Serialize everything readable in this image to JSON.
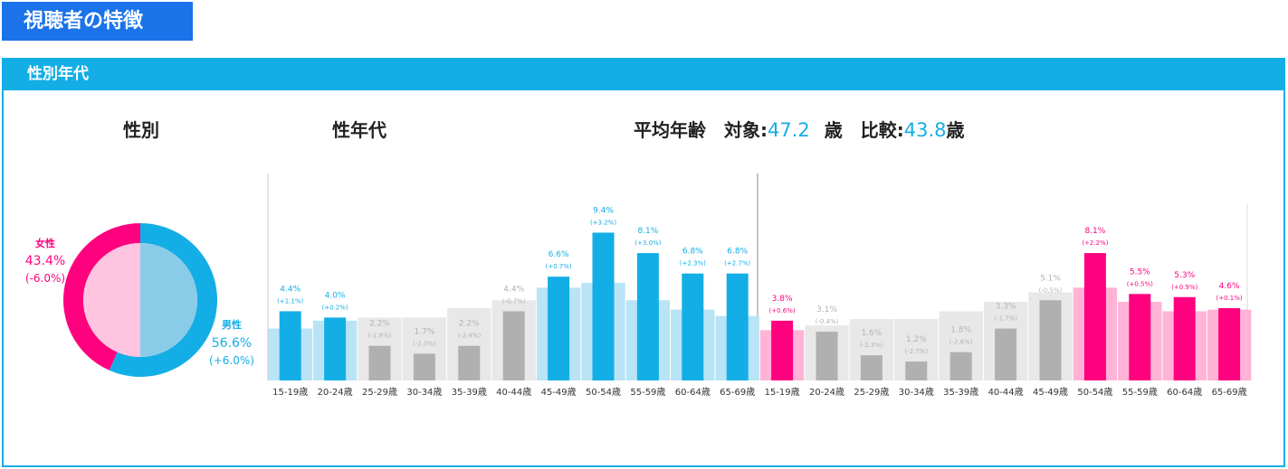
{
  "page_title": "視聴者の特徴",
  "section_title": "性別年代",
  "headings": {
    "gender": "性別",
    "age": "性年代",
    "avg_prefix": "平均年齢　対象:",
    "avg_target": "47.2",
    "avg_unit_mid": "歳　比較:",
    "avg_compare": "43.8",
    "avg_unit_end": "歳"
  },
  "colors": {
    "male_main": "#14aee6",
    "male_light": "#b8e4f6",
    "female_main": "#ff007f",
    "female_light": "#ffb3d6",
    "gray_main": "#b0b0b0",
    "gray_light": "#e8e8e8",
    "gray_text": "#b3b3b3",
    "pie_male_inner": "#8acce8",
    "pie_female_inner": "#ffc4df"
  },
  "chart_data": [
    {
      "type": "pie",
      "labels": [
        "男性",
        "女性"
      ],
      "values": [
        56.6,
        43.4
      ],
      "value_labels": [
        "56.6%",
        "43.4%"
      ],
      "diff_labels": [
        "(+6.0%)",
        "(-6.0%)"
      ]
    },
    {
      "type": "bar",
      "categories": [
        "15-19歳",
        "20-24歳",
        "25-29歳",
        "30-34歳",
        "35-39歳",
        "40-44歳",
        "45-49歳",
        "50-54歳",
        "55-59歳",
        "60-64歳",
        "65-69歳",
        "15-19歳",
        "20-24歳",
        "25-29歳",
        "30-34歳",
        "35-39歳",
        "40-44歳",
        "45-49歳",
        "50-54歳",
        "55-59歳",
        "60-64歳",
        "65-69歳"
      ],
      "groups": [
        "male",
        "male",
        "male",
        "male",
        "male",
        "male",
        "male",
        "male",
        "male",
        "male",
        "male",
        "female",
        "female",
        "female",
        "female",
        "female",
        "female",
        "female",
        "female",
        "female",
        "female",
        "female"
      ],
      "highlight": [
        true,
        true,
        false,
        false,
        false,
        false,
        true,
        true,
        true,
        true,
        true,
        true,
        false,
        false,
        false,
        false,
        false,
        false,
        true,
        true,
        true,
        true
      ],
      "values": [
        4.4,
        4.0,
        2.2,
        1.7,
        2.2,
        4.4,
        6.6,
        9.4,
        8.1,
        6.8,
        6.8,
        3.8,
        3.1,
        1.6,
        1.2,
        1.8,
        3.3,
        5.1,
        8.1,
        5.5,
        5.3,
        4.6
      ],
      "value_labels": [
        "4.4%",
        "4.0%",
        "2.2%",
        "1.7%",
        "2.2%",
        "4.4%",
        "6.6%",
        "9.4%",
        "8.1%",
        "6.8%",
        "6.8%",
        "3.8%",
        "3.1%",
        "1.6%",
        "1.2%",
        "1.8%",
        "3.3%",
        "5.1%",
        "8.1%",
        "5.5%",
        "5.3%",
        "4.6%"
      ],
      "diff_labels": [
        "(+1.1%)",
        "(+0.2%)",
        "(-1.8%)",
        "(-2.3%)",
        "(-2.4%)",
        "(-0.7%)",
        "(+0.7%)",
        "(+3.2%)",
        "(+3.0%)",
        "(+2.3%)",
        "(+2.7%)",
        "(+0.6%)",
        "(-0.4%)",
        "(-2.3%)",
        "(-2.7%)",
        "(-2.6%)",
        "(-1.7%)",
        "(-0.5%)",
        "(+2.2%)",
        "(+0.5%)",
        "(+0.9%)",
        "(+0.1%)"
      ],
      "comparison_values": [
        3.3,
        3.8,
        4.0,
        4.0,
        4.6,
        5.1,
        5.9,
        6.2,
        5.1,
        4.5,
        4.1,
        3.2,
        3.5,
        3.9,
        3.9,
        4.4,
        5.0,
        5.6,
        5.9,
        5.0,
        4.4,
        4.5
      ],
      "ylim": [
        0,
        11.5
      ]
    }
  ]
}
